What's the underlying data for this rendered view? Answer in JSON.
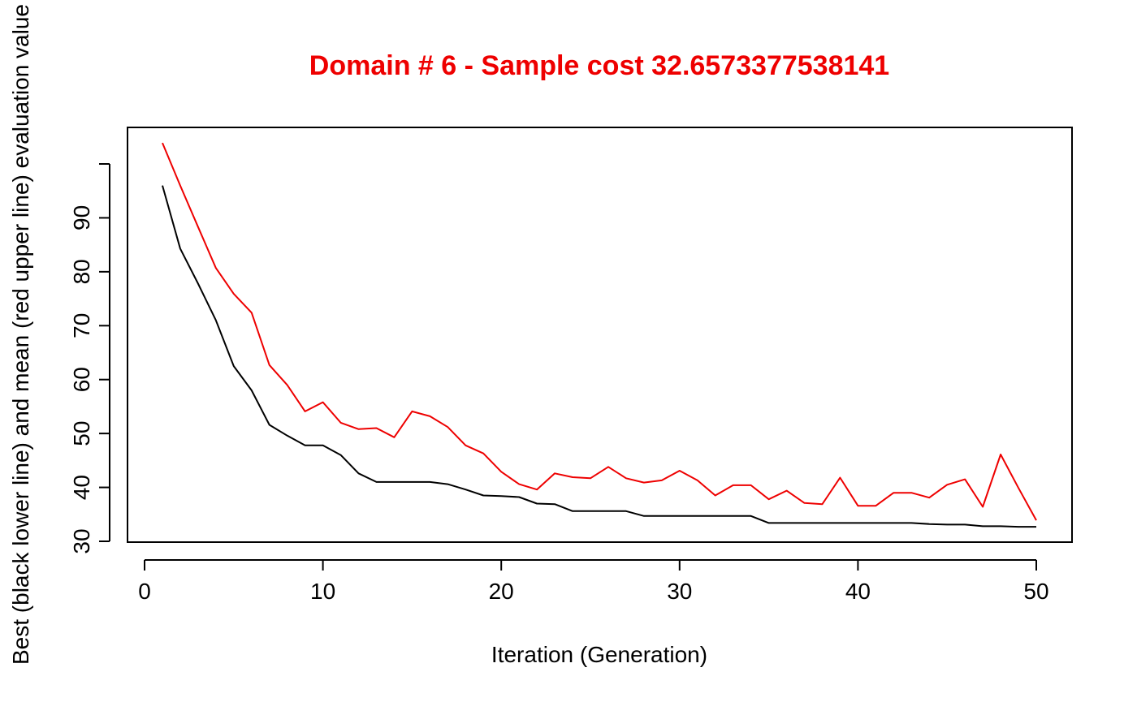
{
  "chart_data": {
    "type": "line",
    "title": "Domain # 6  - Sample cost 32.6573377538141",
    "xlabel": "Iteration (Generation)",
    "ylabel": "Best (black lower line) and mean (red upper line) evaluation value",
    "xlim": [
      0,
      50
    ],
    "ylim": [
      30,
      100
    ],
    "x_ticks": [
      0,
      10,
      20,
      30,
      40,
      50
    ],
    "y_ticks": [
      30,
      40,
      50,
      60,
      70,
      80,
      90
    ],
    "grid": false,
    "x": [
      1,
      2,
      3,
      4,
      5,
      6,
      7,
      8,
      9,
      10,
      11,
      12,
      13,
      14,
      15,
      16,
      17,
      18,
      19,
      20,
      21,
      22,
      23,
      24,
      25,
      26,
      27,
      28,
      29,
      30,
      31,
      32,
      33,
      34,
      35,
      36,
      37,
      38,
      39,
      40,
      41,
      42,
      43,
      44,
      45,
      46,
      47,
      48,
      49,
      50
    ],
    "series": [
      {
        "color": "#ee0000",
        "values": [
          103.9,
          96.0,
          88.3,
          80.7,
          75.9,
          72.4,
          62.7,
          59.0,
          54.1,
          55.8,
          52.0,
          50.8,
          51.0,
          49.3,
          54.1,
          53.2,
          51.2,
          47.8,
          46.3,
          42.9,
          40.6,
          39.6,
          42.6,
          41.9,
          41.7,
          43.8,
          41.7,
          40.9,
          41.3,
          43.1,
          41.3,
          38.5,
          40.4,
          40.4,
          37.8,
          39.4,
          37.1,
          36.9,
          41.8,
          36.6,
          36.6,
          39.0,
          39.0,
          38.1,
          40.5,
          41.5,
          36.4,
          46.1,
          39.9,
          33.9
        ]
      },
      {
        "color": "#000000",
        "values": [
          96.0,
          84.3,
          77.8,
          71.0,
          62.5,
          58.0,
          51.6,
          49.6,
          47.8,
          47.8,
          46.0,
          42.6,
          41.0,
          41.0,
          41.0,
          41.0,
          40.6,
          39.6,
          38.5,
          38.4,
          38.2,
          37.0,
          36.9,
          35.6,
          35.6,
          35.6,
          35.6,
          34.7,
          34.7,
          34.7,
          34.7,
          34.7,
          34.7,
          34.7,
          33.4,
          33.4,
          33.4,
          33.4,
          33.4,
          33.4,
          33.4,
          33.4,
          33.4,
          33.2,
          33.1,
          33.1,
          32.8,
          32.8,
          32.7,
          32.7
        ]
      }
    ]
  }
}
